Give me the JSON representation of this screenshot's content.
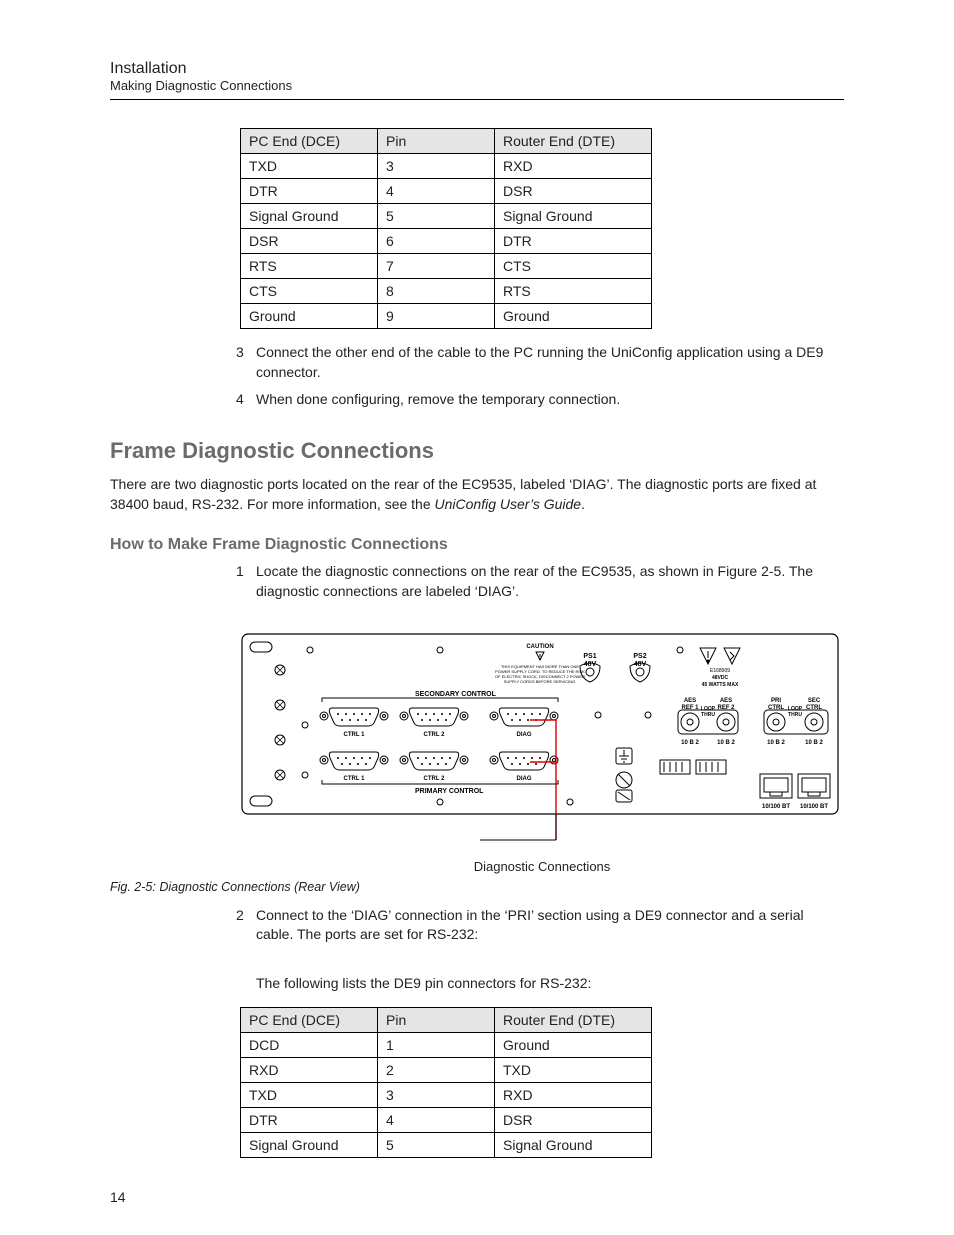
{
  "header": {
    "title": "Installation",
    "subtitle": "Making Diagnostic Connections"
  },
  "table1": {
    "columns": [
      "PC End (DCE)",
      "Pin",
      "Router End (DTE)"
    ],
    "rows": [
      [
        "TXD",
        "3",
        "RXD"
      ],
      [
        "DTR",
        "4",
        "DSR"
      ],
      [
        "Signal Ground",
        "5",
        "Signal Ground"
      ],
      [
        "DSR",
        "6",
        "DTR"
      ],
      [
        "RTS",
        "7",
        "CTS"
      ],
      [
        "CTS",
        "8",
        "RTS"
      ],
      [
        "Ground",
        "9",
        "Ground"
      ]
    ]
  },
  "steps_a": [
    {
      "n": "3",
      "t": "Connect the other end of the cable to the PC running the UniConfig application using a DE9 connector."
    },
    {
      "n": "4",
      "t": "When done configuring, remove the temporary connection."
    }
  ],
  "section": {
    "title": "Frame Diagnostic Connections",
    "intro_a": "There are two diagnostic ports located on the rear of the EC9535, labeled ‘DIAG’. The diagnostic ports are fixed at 38400 baud, RS-232. For more information, see the ",
    "intro_b": "UniConfig User’s Guide",
    "intro_c": "."
  },
  "subsection": {
    "title": "How to Make Frame Diagnostic Connections"
  },
  "steps_b": [
    {
      "n": "1",
      "t": "Locate the diagnostic connections on the rear of the EC9535, as shown in Figure 2-5. The diagnostic connections are labeled ‘DIAG’."
    }
  ],
  "figure": {
    "caption_center": "Diagnostic Connections",
    "label": "Fig. 2-5: Diagnostic Connections (Rear View)",
    "diag_labels": {
      "caution": "CAUTION",
      "ps1": "PS1\n48V",
      "ps2": "PS2\n48V",
      "secondary": "SECONDARY  CONTROL",
      "primary": "PRIMARY  CONTROL",
      "ctrl1": "CTRL 1",
      "ctrl2": "CTRL 2",
      "diag": "DIAG",
      "aes1": "AES\nREF 1",
      "aes2": "AES\nREF 2",
      "pri": "PRI\nCTRL",
      "sec": "SEC\nCTRL",
      "loop": "LOOP\nTHRU",
      "tenb2": "10 B 2",
      "eth": "10/100 BT",
      "e": "E168909",
      "v": "48VDC",
      "w": "45 WATTS MAX",
      "warn": "THIS EQUIPMENT HAS MORE THAN ONE\nPOWER SUPPLY CORD. TO REDUCE THE RISK\nOF ELECTRIC SHOCK, DISCONNECT 2 POWER\nSUPPLY CORDS BEFORE SERVICING."
    }
  },
  "steps_c": [
    {
      "n": "2",
      "t": "Connect to the ‘DIAG’ connection in the ‘PRI’ section using a DE9 connector and a serial cable. The ports are set for RS-232:"
    }
  ],
  "after_step2": "The following lists the DE9 pin connectors for RS-232:",
  "table2": {
    "columns": [
      "PC End (DCE)",
      "Pin",
      "Router End (DTE)"
    ],
    "rows": [
      [
        "DCD",
        "1",
        "Ground"
      ],
      [
        "RXD",
        "2",
        "TXD"
      ],
      [
        "TXD",
        "3",
        "RXD"
      ],
      [
        "DTR",
        "4",
        "DSR"
      ],
      [
        "Signal Ground",
        "5",
        "Signal Ground"
      ]
    ]
  },
  "page_number": "14"
}
